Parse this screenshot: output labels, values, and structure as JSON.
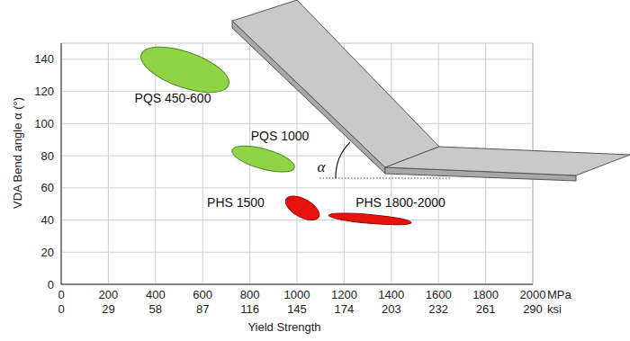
{
  "chart_data": {
    "type": "ellipse",
    "xlabel": "Yield Strength",
    "ylabel": "VDA Bend angle α (°)",
    "x_unit": "MPa",
    "x2_unit": "ksi",
    "xlim": [
      0,
      2000
    ],
    "ylim": [
      0,
      150
    ],
    "xticks": [
      0,
      200,
      400,
      600,
      800,
      1000,
      1200,
      1400,
      1600,
      1800,
      2000
    ],
    "x2ticks": [
      {
        "value": 0,
        "label": "0"
      },
      {
        "value": 200,
        "label": "29"
      },
      {
        "value": 400,
        "label": "58"
      },
      {
        "value": 600,
        "label": "87"
      },
      {
        "value": 800,
        "label": "116"
      },
      {
        "value": 1000,
        "label": "145"
      },
      {
        "value": 1200,
        "label": "174"
      },
      {
        "value": 1400,
        "label": "203"
      },
      {
        "value": 1600,
        "label": "232"
      },
      {
        "value": 1800,
        "label": "261"
      },
      {
        "value": 2000,
        "label": "290"
      }
    ],
    "yticks": [
      0,
      20,
      40,
      60,
      80,
      100,
      120,
      140
    ],
    "grid": true,
    "annotations": [
      "α"
    ],
    "series": [
      {
        "name": "PQS 450-600",
        "color": "#8fd444",
        "x": [
          340,
          710
        ],
        "values": [
          143,
          124
        ],
        "spread": 11
      },
      {
        "name": "PQS 1000",
        "color": "#8fd444",
        "x": [
          725,
          989
        ],
        "values": [
          83.4,
          72.6
        ],
        "spread": 6.2
      },
      {
        "name": "PHS 1500",
        "color": "#e8120c",
        "x": [
          954,
          1092
        ],
        "values": [
          53,
          41.8
        ],
        "spread": 5.6
      },
      {
        "name": "PHS 1800-2000",
        "color": "#e8120c",
        "x": [
          1134,
          1485
        ],
        "values": [
          42.9,
          38.4
        ],
        "spread": 2.8
      }
    ]
  }
}
